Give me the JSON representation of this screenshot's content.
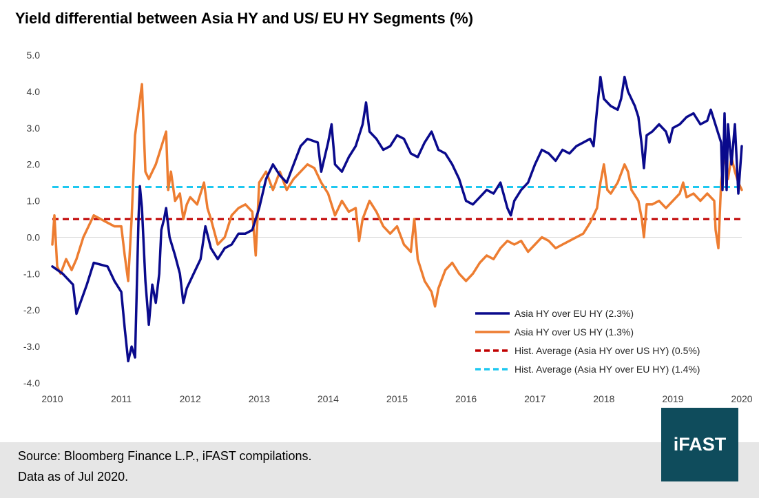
{
  "chart_data": {
    "type": "line",
    "title": "Yield differential between Asia HY and US/ EU HY Segments (%)",
    "xlabel": "",
    "ylabel": "",
    "xlim": [
      2010,
      2020
    ],
    "ylim": [
      -4.0,
      5.0
    ],
    "x_ticks": [
      "2010",
      "2011",
      "2012",
      "2013",
      "2014",
      "2015",
      "2016",
      "2017",
      "2018",
      "2019",
      "2020"
    ],
    "y_ticks": [
      "5.0",
      "4.0",
      "3.0",
      "2.0",
      "1.0",
      "0.0",
      "-1.0",
      "-2.0",
      "-3.0",
      "-4.0"
    ],
    "colors": {
      "asia_eu": "#0a0a8c",
      "asia_us": "#ed7d31",
      "avg_us": "#c00000",
      "avg_eu": "#1ec8f0"
    },
    "legend_position": "bottom-right",
    "series": [
      {
        "name": "Asia HY over EU HY (2.3%)",
        "key": "asia_eu",
        "style": "solid",
        "points": [
          [
            2010.0,
            -0.8
          ],
          [
            2010.15,
            -1.0
          ],
          [
            2010.3,
            -1.3
          ],
          [
            2010.35,
            -2.1
          ],
          [
            2010.5,
            -1.3
          ],
          [
            2010.6,
            -0.7
          ],
          [
            2010.8,
            -0.8
          ],
          [
            2010.9,
            -1.2
          ],
          [
            2011.0,
            -1.5
          ],
          [
            2011.05,
            -2.5
          ],
          [
            2011.1,
            -3.4
          ],
          [
            2011.15,
            -3.0
          ],
          [
            2011.2,
            -3.3
          ],
          [
            2011.25,
            0.5
          ],
          [
            2011.27,
            1.4
          ],
          [
            2011.3,
            0.8
          ],
          [
            2011.35,
            -1.2
          ],
          [
            2011.4,
            -2.4
          ],
          [
            2011.45,
            -1.3
          ],
          [
            2011.5,
            -1.8
          ],
          [
            2011.55,
            -1.0
          ],
          [
            2011.58,
            0.2
          ],
          [
            2011.62,
            0.5
          ],
          [
            2011.65,
            0.8
          ],
          [
            2011.7,
            0.0
          ],
          [
            2011.78,
            -0.5
          ],
          [
            2011.85,
            -1.0
          ],
          [
            2011.9,
            -1.8
          ],
          [
            2011.95,
            -1.4
          ],
          [
            2012.05,
            -1.0
          ],
          [
            2012.15,
            -0.6
          ],
          [
            2012.22,
            0.3
          ],
          [
            2012.3,
            -0.3
          ],
          [
            2012.4,
            -0.6
          ],
          [
            2012.5,
            -0.3
          ],
          [
            2012.6,
            -0.2
          ],
          [
            2012.7,
            0.1
          ],
          [
            2012.8,
            0.1
          ],
          [
            2012.9,
            0.2
          ],
          [
            2013.0,
            0.8
          ],
          [
            2013.1,
            1.6
          ],
          [
            2013.2,
            2.0
          ],
          [
            2013.3,
            1.7
          ],
          [
            2013.4,
            1.5
          ],
          [
            2013.5,
            2.0
          ],
          [
            2013.6,
            2.5
          ],
          [
            2013.7,
            2.7
          ],
          [
            2013.85,
            2.6
          ],
          [
            2013.9,
            1.8
          ],
          [
            2014.0,
            2.6
          ],
          [
            2014.05,
            3.1
          ],
          [
            2014.1,
            2.0
          ],
          [
            2014.2,
            1.8
          ],
          [
            2014.3,
            2.2
          ],
          [
            2014.4,
            2.5
          ],
          [
            2014.5,
            3.1
          ],
          [
            2014.55,
            3.7
          ],
          [
            2014.6,
            2.9
          ],
          [
            2014.7,
            2.7
          ],
          [
            2014.8,
            2.4
          ],
          [
            2014.9,
            2.5
          ],
          [
            2015.0,
            2.8
          ],
          [
            2015.1,
            2.7
          ],
          [
            2015.2,
            2.3
          ],
          [
            2015.3,
            2.2
          ],
          [
            2015.4,
            2.6
          ],
          [
            2015.5,
            2.9
          ],
          [
            2015.6,
            2.4
          ],
          [
            2015.7,
            2.3
          ],
          [
            2015.8,
            2.0
          ],
          [
            2015.9,
            1.6
          ],
          [
            2016.0,
            1.0
          ],
          [
            2016.1,
            0.9
          ],
          [
            2016.2,
            1.1
          ],
          [
            2016.3,
            1.3
          ],
          [
            2016.4,
            1.2
          ],
          [
            2016.5,
            1.5
          ],
          [
            2016.6,
            0.8
          ],
          [
            2016.65,
            0.6
          ],
          [
            2016.7,
            1.0
          ],
          [
            2016.8,
            1.3
          ],
          [
            2016.9,
            1.5
          ],
          [
            2017.0,
            2.0
          ],
          [
            2017.1,
            2.4
          ],
          [
            2017.2,
            2.3
          ],
          [
            2017.3,
            2.1
          ],
          [
            2017.4,
            2.4
          ],
          [
            2017.5,
            2.3
          ],
          [
            2017.6,
            2.5
          ],
          [
            2017.7,
            2.6
          ],
          [
            2017.8,
            2.7
          ],
          [
            2017.85,
            2.5
          ],
          [
            2017.9,
            3.5
          ],
          [
            2017.95,
            4.4
          ],
          [
            2018.0,
            3.8
          ],
          [
            2018.1,
            3.6
          ],
          [
            2018.2,
            3.5
          ],
          [
            2018.25,
            3.8
          ],
          [
            2018.3,
            4.4
          ],
          [
            2018.35,
            4.0
          ],
          [
            2018.45,
            3.6
          ],
          [
            2018.5,
            3.3
          ],
          [
            2018.55,
            2.5
          ],
          [
            2018.58,
            1.9
          ],
          [
            2018.62,
            2.8
          ],
          [
            2018.7,
            2.9
          ],
          [
            2018.8,
            3.1
          ],
          [
            2018.9,
            2.9
          ],
          [
            2018.95,
            2.6
          ],
          [
            2019.0,
            3.0
          ],
          [
            2019.1,
            3.1
          ],
          [
            2019.2,
            3.3
          ],
          [
            2019.3,
            3.4
          ],
          [
            2019.4,
            3.1
          ],
          [
            2019.5,
            3.2
          ],
          [
            2019.55,
            3.5
          ],
          [
            2019.6,
            3.2
          ],
          [
            2019.65,
            2.9
          ],
          [
            2019.7,
            2.6
          ],
          [
            2019.72,
            1.3
          ],
          [
            2019.75,
            3.4
          ],
          [
            2019.78,
            1.3
          ],
          [
            2019.8,
            3.1
          ],
          [
            2019.85,
            2.0
          ],
          [
            2019.9,
            3.1
          ],
          [
            2019.95,
            1.2
          ],
          [
            2020.0,
            2.5
          ]
        ]
      },
      {
        "name": "Asia HY over US HY (1.3%)",
        "key": "asia_us",
        "style": "solid",
        "points": [
          [
            2010.0,
            -0.2
          ],
          [
            2010.03,
            0.6
          ],
          [
            2010.07,
            -0.8
          ],
          [
            2010.12,
            -1.0
          ],
          [
            2010.2,
            -0.6
          ],
          [
            2010.28,
            -0.9
          ],
          [
            2010.35,
            -0.6
          ],
          [
            2010.45,
            0.0
          ],
          [
            2010.55,
            0.4
          ],
          [
            2010.6,
            0.6
          ],
          [
            2010.7,
            0.5
          ],
          [
            2010.8,
            0.4
          ],
          [
            2010.9,
            0.3
          ],
          [
            2011.0,
            0.3
          ],
          [
            2011.05,
            -0.5
          ],
          [
            2011.1,
            -1.2
          ],
          [
            2011.15,
            0.5
          ],
          [
            2011.2,
            2.8
          ],
          [
            2011.25,
            3.5
          ],
          [
            2011.3,
            4.2
          ],
          [
            2011.35,
            1.8
          ],
          [
            2011.4,
            1.6
          ],
          [
            2011.45,
            1.8
          ],
          [
            2011.5,
            2.0
          ],
          [
            2011.55,
            2.3
          ],
          [
            2011.6,
            2.6
          ],
          [
            2011.65,
            2.9
          ],
          [
            2011.68,
            1.3
          ],
          [
            2011.72,
            1.8
          ],
          [
            2011.78,
            1.0
          ],
          [
            2011.85,
            1.2
          ],
          [
            2011.9,
            0.5
          ],
          [
            2011.95,
            0.9
          ],
          [
            2012.0,
            1.1
          ],
          [
            2012.1,
            0.9
          ],
          [
            2012.2,
            1.5
          ],
          [
            2012.25,
            0.8
          ],
          [
            2012.3,
            0.5
          ],
          [
            2012.4,
            -0.2
          ],
          [
            2012.5,
            0.0
          ],
          [
            2012.6,
            0.6
          ],
          [
            2012.7,
            0.8
          ],
          [
            2012.8,
            0.9
          ],
          [
            2012.9,
            0.7
          ],
          [
            2012.95,
            -0.5
          ],
          [
            2013.0,
            1.5
          ],
          [
            2013.1,
            1.8
          ],
          [
            2013.2,
            1.3
          ],
          [
            2013.3,
            1.8
          ],
          [
            2013.4,
            1.3
          ],
          [
            2013.5,
            1.6
          ],
          [
            2013.6,
            1.8
          ],
          [
            2013.7,
            2.0
          ],
          [
            2013.8,
            1.9
          ],
          [
            2013.9,
            1.5
          ],
          [
            2014.0,
            1.2
          ],
          [
            2014.1,
            0.6
          ],
          [
            2014.2,
            1.0
          ],
          [
            2014.3,
            0.7
          ],
          [
            2014.4,
            0.8
          ],
          [
            2014.45,
            -0.1
          ],
          [
            2014.5,
            0.5
          ],
          [
            2014.6,
            1.0
          ],
          [
            2014.7,
            0.7
          ],
          [
            2014.8,
            0.3
          ],
          [
            2014.9,
            0.1
          ],
          [
            2015.0,
            0.3
          ],
          [
            2015.1,
            -0.2
          ],
          [
            2015.2,
            -0.4
          ],
          [
            2015.25,
            0.5
          ],
          [
            2015.3,
            -0.6
          ],
          [
            2015.4,
            -1.2
          ],
          [
            2015.5,
            -1.5
          ],
          [
            2015.55,
            -1.9
          ],
          [
            2015.6,
            -1.4
          ],
          [
            2015.7,
            -0.9
          ],
          [
            2015.8,
            -0.7
          ],
          [
            2015.9,
            -1.0
          ],
          [
            2016.0,
            -1.2
          ],
          [
            2016.1,
            -1.0
          ],
          [
            2016.2,
            -0.7
          ],
          [
            2016.3,
            -0.5
          ],
          [
            2016.4,
            -0.6
          ],
          [
            2016.5,
            -0.3
          ],
          [
            2016.6,
            -0.1
          ],
          [
            2016.7,
            -0.2
          ],
          [
            2016.8,
            -0.1
          ],
          [
            2016.9,
            -0.4
          ],
          [
            2017.0,
            -0.2
          ],
          [
            2017.1,
            0.0
          ],
          [
            2017.2,
            -0.1
          ],
          [
            2017.3,
            -0.3
          ],
          [
            2017.4,
            -0.2
          ],
          [
            2017.5,
            -0.1
          ],
          [
            2017.6,
            0.0
          ],
          [
            2017.7,
            0.1
          ],
          [
            2017.8,
            0.4
          ],
          [
            2017.9,
            0.8
          ],
          [
            2017.95,
            1.5
          ],
          [
            2018.0,
            2.0
          ],
          [
            2018.05,
            1.3
          ],
          [
            2018.1,
            1.2
          ],
          [
            2018.2,
            1.5
          ],
          [
            2018.3,
            2.0
          ],
          [
            2018.35,
            1.8
          ],
          [
            2018.4,
            1.3
          ],
          [
            2018.5,
            1.0
          ],
          [
            2018.55,
            0.5
          ],
          [
            2018.58,
            0.0
          ],
          [
            2018.62,
            0.9
          ],
          [
            2018.7,
            0.9
          ],
          [
            2018.8,
            1.0
          ],
          [
            2018.9,
            0.8
          ],
          [
            2019.0,
            1.0
          ],
          [
            2019.1,
            1.2
          ],
          [
            2019.15,
            1.5
          ],
          [
            2019.2,
            1.1
          ],
          [
            2019.3,
            1.2
          ],
          [
            2019.4,
            1.0
          ],
          [
            2019.5,
            1.2
          ],
          [
            2019.6,
            1.0
          ],
          [
            2019.62,
            0.2
          ],
          [
            2019.66,
            -0.3
          ],
          [
            2019.7,
            1.5
          ],
          [
            2019.75,
            2.3
          ],
          [
            2019.8,
            1.6
          ],
          [
            2019.85,
            2.2
          ],
          [
            2019.9,
            1.8
          ],
          [
            2019.95,
            1.5
          ],
          [
            2020.0,
            1.3
          ]
        ]
      },
      {
        "name": "Hist. Average (Asia HY over US HY) (0.5%)",
        "key": "avg_us",
        "style": "dashed",
        "points": [
          [
            2010.0,
            0.5
          ],
          [
            2020.0,
            0.5
          ]
        ]
      },
      {
        "name": "Hist. Average (Asia HY over EU HY) (1.4%)",
        "key": "avg_eu",
        "style": "dashed",
        "points": [
          [
            2010.0,
            1.38
          ],
          [
            2020.0,
            1.38
          ]
        ]
      }
    ]
  },
  "footer": {
    "source": "Source: Bloomberg Finance L.P., iFAST compilations.",
    "data_as_of": "Data as of Jul 2020."
  },
  "logo": {
    "text": "iFAST"
  }
}
